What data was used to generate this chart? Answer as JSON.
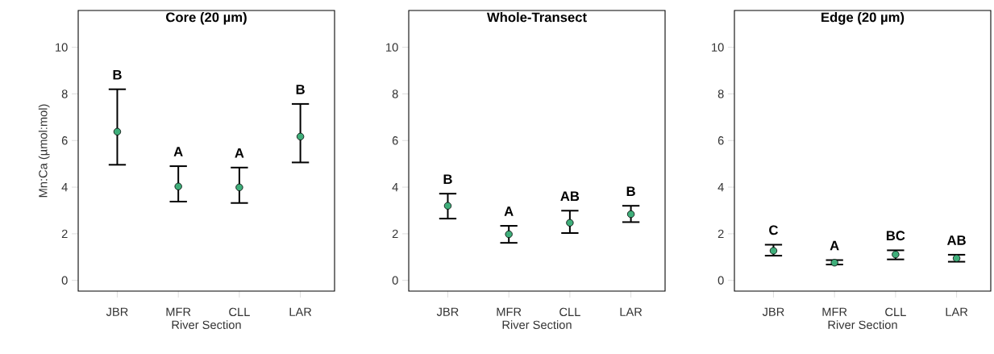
{
  "chart_data": [
    {
      "type": "scatter",
      "title": "Core (20 µm)",
      "xlabel": "River Section",
      "ylabel": "Mn:Ca (µmol:mol)",
      "categories": [
        "JBR",
        "MFR",
        "CLL",
        "LAR"
      ],
      "color": "#3fae7a",
      "marker": "circle",
      "values": [
        6.38,
        4.03,
        3.99,
        6.17
      ],
      "errors": [
        [
          4.96,
          8.2
        ],
        [
          3.38,
          4.9
        ],
        [
          3.32,
          4.84
        ],
        [
          5.06,
          7.57
        ]
      ],
      "ylim": [
        -0.46,
        11.58
      ],
      "yticks": [
        0,
        2,
        4,
        6,
        8,
        10
      ],
      "annotations": [
        "B",
        "A",
        "A",
        "B"
      ]
    },
    {
      "type": "scatter",
      "title": "Whole-Transect",
      "xlabel": "River Section",
      "categories": [
        "JBR",
        "MFR",
        "CLL",
        "LAR"
      ],
      "color": "#3fae7a",
      "marker": "circle",
      "values": [
        3.2,
        1.98,
        2.47,
        2.84
      ],
      "errors": [
        [
          2.65,
          3.72
        ],
        [
          1.61,
          2.34
        ],
        [
          2.03,
          2.99
        ],
        [
          2.5,
          3.2
        ]
      ],
      "ylim": [
        -0.46,
        11.58
      ],
      "yticks": [
        0,
        2,
        4,
        6,
        8,
        10
      ],
      "annotations": [
        "B",
        "A",
        "AB",
        "B"
      ]
    },
    {
      "type": "scatter",
      "title": "Edge (20 µm)",
      "xlabel": "River Section",
      "categories": [
        "JBR",
        "MFR",
        "CLL",
        "LAR"
      ],
      "color": "#3fae7a",
      "marker": "circle",
      "values": [
        1.27,
        0.76,
        1.11,
        0.95
      ],
      "errors": [
        [
          1.06,
          1.53
        ],
        [
          0.68,
          0.87
        ],
        [
          0.9,
          1.29
        ],
        [
          0.8,
          1.1
        ]
      ],
      "ylim": [
        -0.46,
        11.58
      ],
      "yticks": [
        0,
        2,
        4,
        6,
        8,
        10
      ],
      "annotations": [
        "C",
        "A",
        "BC",
        "AB"
      ]
    }
  ]
}
